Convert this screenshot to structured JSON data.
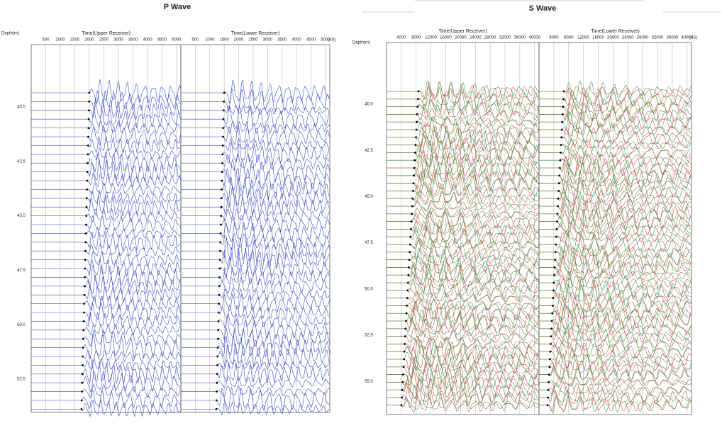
{
  "panels": [
    {
      "title": "P Wave",
      "depth_label": "Depth(m)",
      "depth_ticks": [
        "40.0",
        "42.5",
        "45.0",
        "47.5",
        "50.0",
        "52.5"
      ],
      "plots": [
        {
          "title": "Time(Upper Receiver)",
          "ticks": [
            "500",
            "1000",
            "1500",
            "2000",
            "2500",
            "3000",
            "3500",
            "4000",
            "4500",
            "5000"
          ]
        },
        {
          "title": "Time(Lower Receiver)",
          "ticks": [
            "500",
            "1000",
            "1500",
            "2000",
            "2500",
            "3000",
            "3500",
            "4000",
            "4500",
            "5000"
          ],
          "unit": "(uS)"
        }
      ]
    },
    {
      "title": "S Wave",
      "depth_label": "Depth(m)",
      "depth_ticks": [
        "40.0",
        "42.5",
        "45.0",
        "47.5",
        "50.0",
        "52.5",
        "55.0"
      ],
      "plots": [
        {
          "title": "Time(Upper Receiver)",
          "ticks": [
            "4000",
            "8000",
            "12000",
            "16000",
            "20000",
            "24000",
            "28000",
            "32000",
            "36000",
            "40000"
          ]
        },
        {
          "title": "Time(Lower Receiver)",
          "ticks": [
            "4000",
            "8000",
            "12000",
            "16000",
            "20000",
            "24000",
            "28000",
            "32000",
            "36000",
            "40000"
          ],
          "unit": "(uS)"
        }
      ]
    }
  ]
}
